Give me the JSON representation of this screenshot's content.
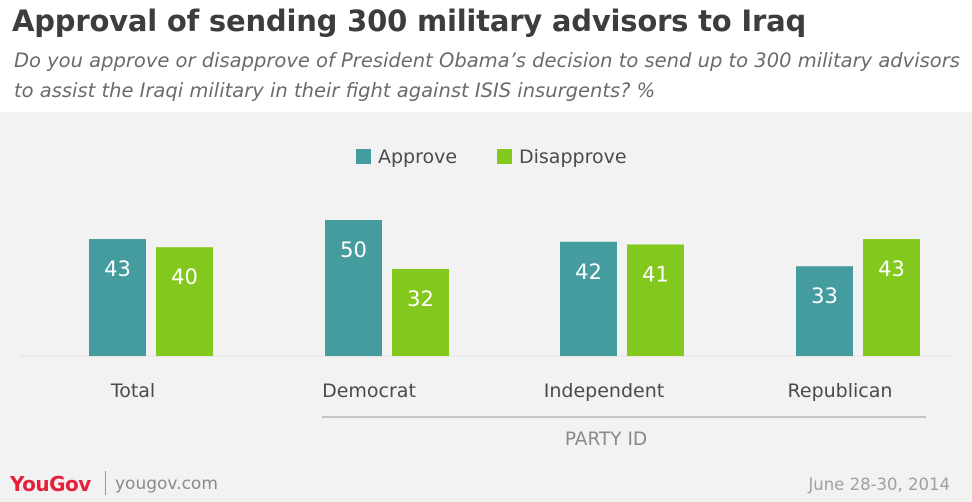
{
  "header": {
    "title": "Approval of sending 300 military advisors to Iraq",
    "subtitle": "Do you approve or disapprove of President Obama’s decision to send up to 300 military advisors to assist the Iraqi military in their fight against ISIS insurgents? %"
  },
  "chart_data": {
    "type": "bar",
    "categories": [
      "Total",
      "Democrat",
      "Independent",
      "Republican"
    ],
    "series": [
      {
        "name": "Approve",
        "values": [
          43,
          50,
          42,
          33
        ],
        "color": "#449c9e"
      },
      {
        "name": "Disapprove",
        "values": [
          40,
          32,
          41,
          43
        ],
        "color": "#83c81c"
      }
    ],
    "group_label": "PARTY ID",
    "ylim": [
      0,
      50
    ],
    "legend_placement": "top-center",
    "grid": false
  },
  "footer": {
    "brand": "YouGov",
    "url": "yougov.com",
    "date": "June 28-30, 2014"
  },
  "colors": {
    "plot_background": "#f2f2f2",
    "brand_red": "#e5203b"
  }
}
